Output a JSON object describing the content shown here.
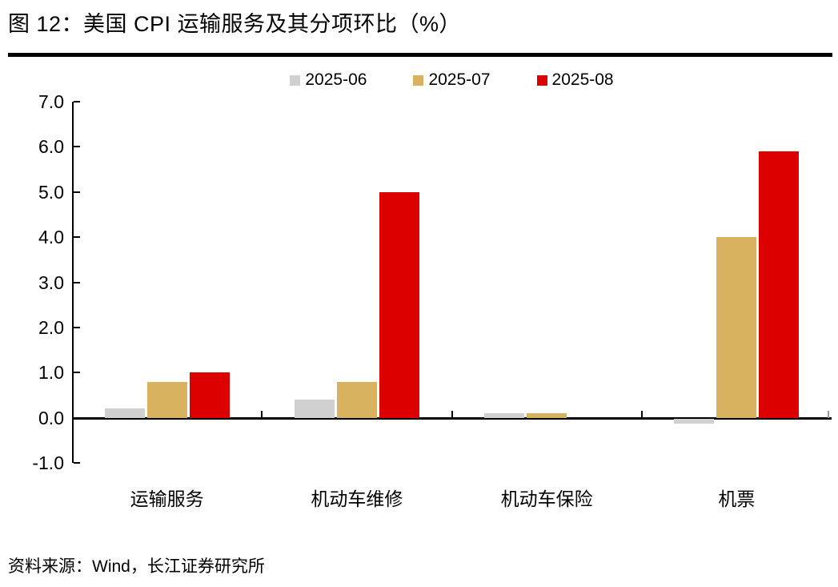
{
  "title": "图 12：美国 CPI 运输服务及其分项环比（%）",
  "source": "资料来源：Wind，长江证券研究所",
  "colors": {
    "series_2025_06": "#d0d0d0",
    "series_2025_07": "#d9b260",
    "series_2025_08": "#dd0000",
    "axis": "#000000",
    "right_end_tick": "#999999"
  },
  "chart_data": {
    "type": "bar",
    "title": "图 12：美国 CPI 运输服务及其分项环比（%）",
    "xlabel": "",
    "ylabel": "",
    "categories": [
      "运输服务",
      "机动车维修",
      "机动车保险",
      "机票"
    ],
    "series": [
      {
        "name": "2025-06",
        "color": "#d0d0d0",
        "values": [
          0.2,
          0.4,
          0.1,
          -0.1
        ]
      },
      {
        "name": "2025-07",
        "color": "#d9b260",
        "values": [
          0.8,
          0.8,
          0.1,
          4.0
        ]
      },
      {
        "name": "2025-08",
        "color": "#dd0000",
        "values": [
          1.0,
          5.0,
          0.0,
          5.9
        ]
      }
    ],
    "ylim": [
      -1.0,
      7.0
    ],
    "ytick_step": 1.0,
    "yticks": [
      "7.0",
      "6.0",
      "5.0",
      "4.0",
      "3.0",
      "2.0",
      "1.0",
      "0.0",
      "-1.0"
    ],
    "grid": false,
    "legend_position": "top-center"
  }
}
